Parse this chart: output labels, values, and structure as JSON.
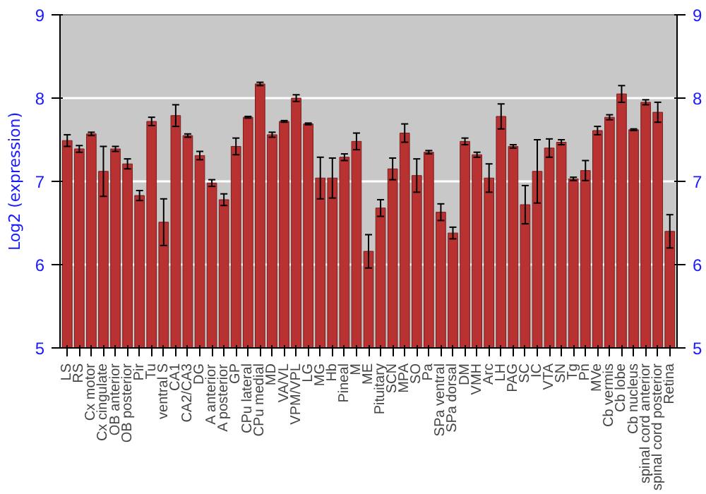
{
  "chart_data": {
    "type": "bar",
    "ylabel": "Log2 (expression)",
    "categories": [
      "LS",
      "RS",
      "Cx motor",
      "Cx cingulate",
      "OB anterior",
      "OB posterior",
      "Pir",
      "Tu",
      "ventral S",
      "CA1",
      "CA2/CA3",
      "DG",
      "A anterior",
      "A posterior",
      "GP",
      "CPu lateral",
      "CPu medial",
      "MD",
      "VA/VL",
      "VPM/VPL",
      "LG",
      "MG",
      "Hb",
      "Pineal",
      "M",
      "ME",
      "Pituitary",
      "SCN",
      "MPA",
      "SO",
      "Pa",
      "SPa ventral",
      "SPa dorsal",
      "DM",
      "VMH",
      "Arc",
      "LH",
      "PAG",
      "SC",
      "IC",
      "VTA",
      "SN",
      "Tg",
      "Pn",
      "MVe",
      "Cb vermis",
      "Cb lobe",
      "Cb nucleus",
      "spinal cord anterior",
      "spinal cord posterior",
      "Retina"
    ],
    "values": [
      7.49,
      7.39,
      7.57,
      7.12,
      7.39,
      7.21,
      6.83,
      7.72,
      6.51,
      7.79,
      7.55,
      7.31,
      6.98,
      6.78,
      7.42,
      7.77,
      8.17,
      7.56,
      7.72,
      8.0,
      7.69,
      7.04,
      7.04,
      7.29,
      7.48,
      6.16,
      6.68,
      7.15,
      7.58,
      7.07,
      7.35,
      6.63,
      6.38,
      7.48,
      7.32,
      7.04,
      7.78,
      7.42,
      6.72,
      7.12,
      7.4,
      7.47,
      7.03,
      7.13,
      7.61,
      7.77,
      8.05,
      7.62,
      7.95,
      7.83,
      6.4
    ],
    "errors": [
      0.07,
      0.04,
      0.02,
      0.3,
      0.03,
      0.06,
      0.06,
      0.05,
      0.28,
      0.13,
      0.02,
      0.05,
      0.04,
      0.07,
      0.1,
      0.01,
      0.02,
      0.03,
      0.01,
      0.04,
      0.01,
      0.25,
      0.24,
      0.04,
      0.1,
      0.2,
      0.1,
      0.13,
      0.11,
      0.2,
      0.02,
      0.1,
      0.07,
      0.04,
      0.03,
      0.17,
      0.15,
      0.02,
      0.23,
      0.38,
      0.11,
      0.03,
      0.02,
      0.12,
      0.05,
      0.03,
      0.1,
      0.01,
      0.03,
      0.12,
      0.2
    ],
    "color": "#b83232",
    "ylim": [
      5,
      9
    ],
    "yticks": [
      5,
      6,
      7,
      8,
      9
    ],
    "y2lim": [
      5,
      9
    ],
    "y2ticks": [
      5,
      6,
      7,
      8,
      9
    ],
    "grid": "y"
  }
}
